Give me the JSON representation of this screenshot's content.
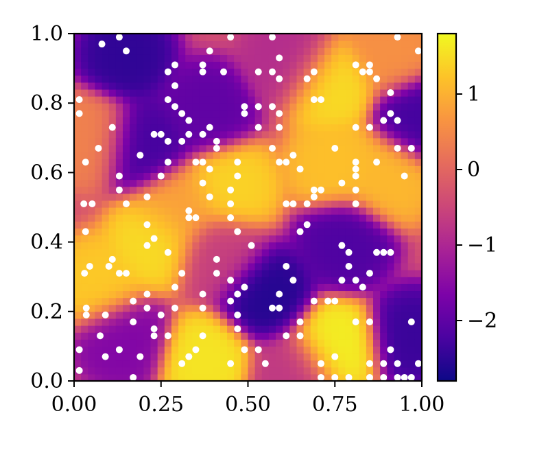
{
  "chart_data": {
    "type": "heatmap",
    "title": "",
    "xlabel": "",
    "ylabel": "",
    "xlim": [
      0.0,
      1.0
    ],
    "ylim": [
      0.0,
      1.0
    ],
    "x_tick_labels": [
      "0.00",
      "0.25",
      "0.50",
      "0.75",
      "1.00"
    ],
    "x_ticks": [
      0.0,
      0.25,
      0.5,
      0.75,
      1.0
    ],
    "y_tick_labels": [
      "0.0",
      "0.2",
      "0.4",
      "0.6",
      "0.8",
      "1.0"
    ],
    "y_ticks": [
      0.0,
      0.2,
      0.4,
      0.6,
      0.8,
      1.0
    ],
    "colormap": "plasma",
    "color_range": [
      -2.8,
      1.8
    ],
    "colorbar_tick_labels": [
      "1",
      "0",
      "−1",
      "−2"
    ],
    "colorbar_ticks": [
      1,
      0,
      -1,
      -2
    ],
    "grid": false,
    "legend": "none",
    "field_features": [
      {
        "x": 0.45,
        "y": 0.56,
        "value": 1.4
      },
      {
        "x": 0.75,
        "y": 0.62,
        "value": 1.2
      },
      {
        "x": 0.73,
        "y": 0.85,
        "value": 1.5
      },
      {
        "x": 0.23,
        "y": 0.4,
        "value": 1.5
      },
      {
        "x": 0.07,
        "y": 0.28,
        "value": 1.3
      },
      {
        "x": 0.38,
        "y": 0.06,
        "value": 1.6
      },
      {
        "x": 0.75,
        "y": 0.1,
        "value": 1.7
      },
      {
        "x": 0.9,
        "y": 0.58,
        "value": 1.1
      },
      {
        "x": 0.92,
        "y": 0.95,
        "value": 0.6
      },
      {
        "x": 0.05,
        "y": 0.7,
        "value": 0.4
      },
      {
        "x": 0.3,
        "y": 0.5,
        "value": 0.8
      },
      {
        "x": 0.2,
        "y": 0.68,
        "value": -2.3
      },
      {
        "x": 0.15,
        "y": 0.94,
        "value": -2.5
      },
      {
        "x": 0.38,
        "y": 0.78,
        "value": -2.0
      },
      {
        "x": 0.55,
        "y": 0.25,
        "value": -2.6
      },
      {
        "x": 0.78,
        "y": 0.4,
        "value": -2.2
      },
      {
        "x": 0.98,
        "y": 0.13,
        "value": -2.4
      },
      {
        "x": 1.0,
        "y": 0.76,
        "value": -2.3
      },
      {
        "x": 0.14,
        "y": 0.12,
        "value": -1.6
      },
      {
        "x": 0.62,
        "y": 0.92,
        "value": -0.9
      },
      {
        "x": 0.63,
        "y": 0.02,
        "value": -0.7
      },
      {
        "x": 0.42,
        "y": 0.36,
        "value": -0.6
      }
    ],
    "points": [
      [
        0.015,
        0.81
      ],
      [
        0.015,
        0.77
      ],
      [
        0.033,
        0.63
      ],
      [
        0.028,
        0.51
      ],
      [
        0.052,
        0.51
      ],
      [
        0.033,
        0.43
      ],
      [
        0.03,
        0.31
      ],
      [
        0.045,
        0.33
      ],
      [
        0.035,
        0.21
      ],
      [
        0.035,
        0.19
      ],
      [
        0.015,
        0.09
      ],
      [
        0.015,
        0.03
      ],
      [
        0.075,
        0.13
      ],
      [
        0.09,
        0.07
      ],
      [
        0.07,
        0.67
      ],
      [
        0.08,
        0.97
      ],
      [
        0.13,
        0.99
      ],
      [
        0.15,
        0.95
      ],
      [
        0.11,
        0.73
      ],
      [
        0.13,
        0.59
      ],
      [
        0.13,
        0.55
      ],
      [
        0.15,
        0.51
      ],
      [
        0.11,
        0.35
      ],
      [
        0.1,
        0.33
      ],
      [
        0.13,
        0.31
      ],
      [
        0.15,
        0.31
      ],
      [
        0.09,
        0.19
      ],
      [
        0.17,
        0.23
      ],
      [
        0.17,
        0.17
      ],
      [
        0.21,
        0.21
      ],
      [
        0.21,
        0.25
      ],
      [
        0.13,
        0.09
      ],
      [
        0.19,
        0.07
      ],
      [
        0.19,
        0.65
      ],
      [
        0.23,
        0.71
      ],
      [
        0.25,
        0.71
      ],
      [
        0.27,
        0.69
      ],
      [
        0.21,
        0.45
      ],
      [
        0.21,
        0.39
      ],
      [
        0.23,
        0.41
      ],
      [
        0.27,
        0.37
      ],
      [
        0.21,
        0.53
      ],
      [
        0.25,
        0.59
      ],
      [
        0.27,
        0.63
      ],
      [
        0.23,
        0.13
      ],
      [
        0.25,
        0.19
      ],
      [
        0.27,
        0.13
      ],
      [
        0.29,
        0.27
      ],
      [
        0.31,
        0.31
      ],
      [
        0.29,
        0.91
      ],
      [
        0.27,
        0.89
      ],
      [
        0.29,
        0.85
      ],
      [
        0.27,
        0.81
      ],
      [
        0.29,
        0.79
      ],
      [
        0.31,
        0.77
      ],
      [
        0.31,
        0.69
      ],
      [
        0.33,
        0.75
      ],
      [
        0.33,
        0.71
      ],
      [
        0.35,
        0.63
      ],
      [
        0.33,
        0.47
      ],
      [
        0.35,
        0.47
      ],
      [
        0.33,
        0.49
      ],
      [
        0.37,
        0.63
      ],
      [
        0.37,
        0.57
      ],
      [
        0.39,
        0.53
      ],
      [
        0.37,
        0.71
      ],
      [
        0.39,
        0.73
      ],
      [
        0.41,
        0.69
      ],
      [
        0.41,
        0.67
      ],
      [
        0.37,
        0.89
      ],
      [
        0.37,
        0.91
      ],
      [
        0.39,
        0.95
      ],
      [
        0.43,
        0.89
      ],
      [
        0.45,
        0.99
      ],
      [
        0.39,
        0.61
      ],
      [
        0.41,
        0.35
      ],
      [
        0.41,
        0.31
      ],
      [
        0.37,
        0.25
      ],
      [
        0.37,
        0.21
      ],
      [
        0.33,
        0.07
      ],
      [
        0.35,
        0.09
      ],
      [
        0.37,
        0.13
      ],
      [
        0.31,
        0.05
      ],
      [
        0.29,
        0.21
      ],
      [
        0.45,
        0.29
      ],
      [
        0.45,
        0.23
      ],
      [
        0.47,
        0.25
      ],
      [
        0.49,
        0.27
      ],
      [
        0.47,
        0.19
      ],
      [
        0.47,
        0.15
      ],
      [
        0.49,
        0.09
      ],
      [
        0.53,
        0.09
      ],
      [
        0.55,
        0.05
      ],
      [
        0.45,
        0.55
      ],
      [
        0.45,
        0.51
      ],
      [
        0.45,
        0.47
      ],
      [
        0.47,
        0.43
      ],
      [
        0.47,
        0.59
      ],
      [
        0.47,
        0.63
      ],
      [
        0.49,
        0.77
      ],
      [
        0.49,
        0.79
      ],
      [
        0.53,
        0.79
      ],
      [
        0.53,
        0.73
      ],
      [
        0.57,
        0.79
      ],
      [
        0.59,
        0.77
      ],
      [
        0.59,
        0.73
      ],
      [
        0.57,
        0.67
      ],
      [
        0.59,
        0.63
      ],
      [
        0.61,
        0.63
      ],
      [
        0.63,
        0.65
      ],
      [
        0.63,
        0.51
      ],
      [
        0.61,
        0.51
      ],
      [
        0.65,
        0.61
      ],
      [
        0.65,
        0.43
      ],
      [
        0.67,
        0.45
      ],
      [
        0.67,
        0.51
      ],
      [
        0.69,
        0.53
      ],
      [
        0.69,
        0.55
      ],
      [
        0.71,
        0.55
      ],
      [
        0.71,
        0.81
      ],
      [
        0.69,
        0.81
      ],
      [
        0.67,
        0.87
      ],
      [
        0.69,
        0.89
      ],
      [
        0.59,
        0.87
      ],
      [
        0.57,
        0.89
      ],
      [
        0.59,
        0.93
      ],
      [
        0.57,
        0.99
      ],
      [
        0.53,
        0.89
      ],
      [
        0.51,
        0.39
      ],
      [
        0.57,
        0.21
      ],
      [
        0.59,
        0.21
      ],
      [
        0.59,
        0.25
      ],
      [
        0.61,
        0.33
      ],
      [
        0.63,
        0.29
      ],
      [
        0.65,
        0.17
      ],
      [
        0.65,
        0.13
      ],
      [
        0.61,
        0.13
      ],
      [
        0.69,
        0.23
      ],
      [
        0.71,
        0.05
      ],
      [
        0.71,
        0.01
      ],
      [
        0.75,
        0.01
      ],
      [
        0.79,
        0.01
      ],
      [
        0.75,
        0.07
      ],
      [
        0.73,
        0.23
      ],
      [
        0.75,
        0.23
      ],
      [
        0.77,
        0.29
      ],
      [
        0.79,
        0.33
      ],
      [
        0.81,
        0.29
      ],
      [
        0.81,
        0.17
      ],
      [
        0.85,
        0.17
      ],
      [
        0.79,
        0.37
      ],
      [
        0.77,
        0.39
      ],
      [
        0.81,
        0.51
      ],
      [
        0.81,
        0.55
      ],
      [
        0.81,
        0.59
      ],
      [
        0.81,
        0.61
      ],
      [
        0.81,
        0.63
      ],
      [
        0.77,
        0.57
      ],
      [
        0.75,
        0.67
      ],
      [
        0.81,
        0.73
      ],
      [
        0.81,
        0.91
      ],
      [
        0.83,
        0.89
      ],
      [
        0.85,
        0.91
      ],
      [
        0.85,
        0.89
      ],
      [
        0.87,
        0.87
      ],
      [
        0.85,
        0.73
      ],
      [
        0.87,
        0.63
      ],
      [
        0.89,
        0.75
      ],
      [
        0.91,
        0.77
      ],
      [
        0.93,
        0.75
      ],
      [
        0.91,
        0.83
      ],
      [
        0.93,
        0.99
      ],
      [
        0.99,
        0.95
      ],
      [
        0.93,
        0.67
      ],
      [
        0.97,
        0.67
      ],
      [
        0.95,
        0.59
      ],
      [
        0.87,
        0.37
      ],
      [
        0.89,
        0.37
      ],
      [
        0.91,
        0.37
      ],
      [
        0.85,
        0.31
      ],
      [
        0.83,
        0.27
      ],
      [
        0.85,
        0.05
      ],
      [
        0.85,
        0.01
      ],
      [
        0.89,
        0.05
      ],
      [
        0.89,
        0.01
      ],
      [
        0.91,
        0.09
      ],
      [
        0.93,
        0.05
      ],
      [
        0.93,
        0.01
      ],
      [
        0.95,
        0.01
      ],
      [
        0.97,
        0.01
      ],
      [
        0.97,
        0.17
      ],
      [
        0.17,
        0.01
      ],
      [
        0.23,
        0.15
      ],
      [
        0.45,
        0.05
      ],
      [
        0.99,
        0.05
      ]
    ]
  }
}
